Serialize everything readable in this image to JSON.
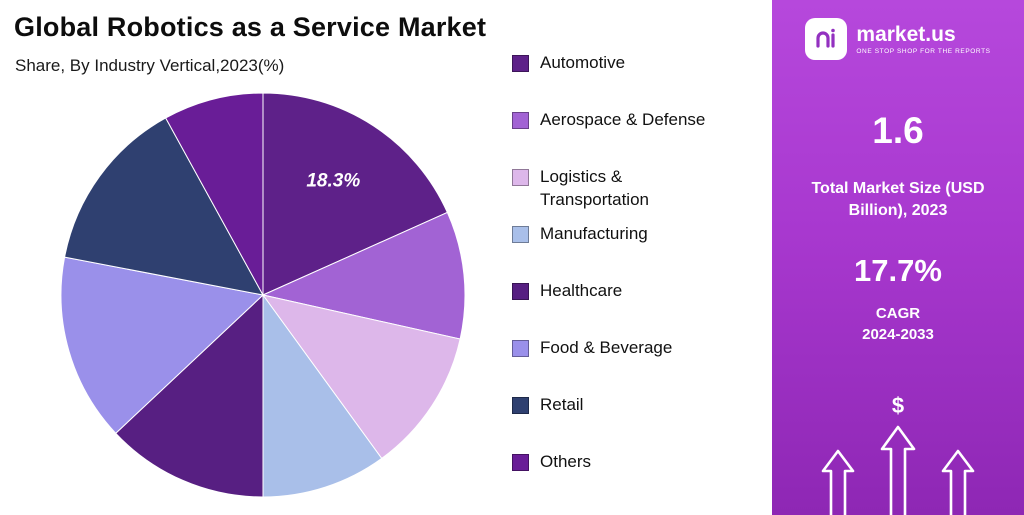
{
  "header": {
    "title": "Global Robotics as a Service Market",
    "subtitle": "Share, By Industry Vertical,2023(%)"
  },
  "chart_data": {
    "type": "pie",
    "title": "Global Robotics as a Service Market",
    "subtitle": "Share, By Industry Vertical,2023(%)",
    "legend_position": "right",
    "segments": [
      {
        "label": "Automotive",
        "value": 18.3,
        "display_label": "18.3%",
        "color": "#5e2189"
      },
      {
        "label": "Aerospace & Defense",
        "value": 10.2,
        "display_label": "",
        "color": "#a263d4"
      },
      {
        "label": "Logistics & Transportation",
        "value": 11.5,
        "display_label": "",
        "color": "#ddb7ea"
      },
      {
        "label": "Manufacturing",
        "value": 10.0,
        "display_label": "",
        "color": "#a9bfe9"
      },
      {
        "label": "Healthcare",
        "value": 13.0,
        "display_label": "",
        "color": "#571f82"
      },
      {
        "label": "Food & Beverage",
        "value": 15.0,
        "display_label": "",
        "color": "#9a90ea"
      },
      {
        "label": "Retail",
        "value": 14.0,
        "display_label": "",
        "color": "#2f4070"
      },
      {
        "label": "Others",
        "value": 8.0,
        "display_label": "",
        "color": "#691d97"
      }
    ]
  },
  "sidebar": {
    "brand": {
      "name": "market.us",
      "tagline": "ONE STOP SHOP FOR THE REPORTS"
    },
    "market_size_value": "1.6",
    "market_size_label": "Total Market Size (USD Billion), 2023",
    "cagr_value": "17.7%",
    "cagr_label": "CAGR",
    "cagr_period": "2024-2033",
    "dollar_symbol": "$"
  }
}
